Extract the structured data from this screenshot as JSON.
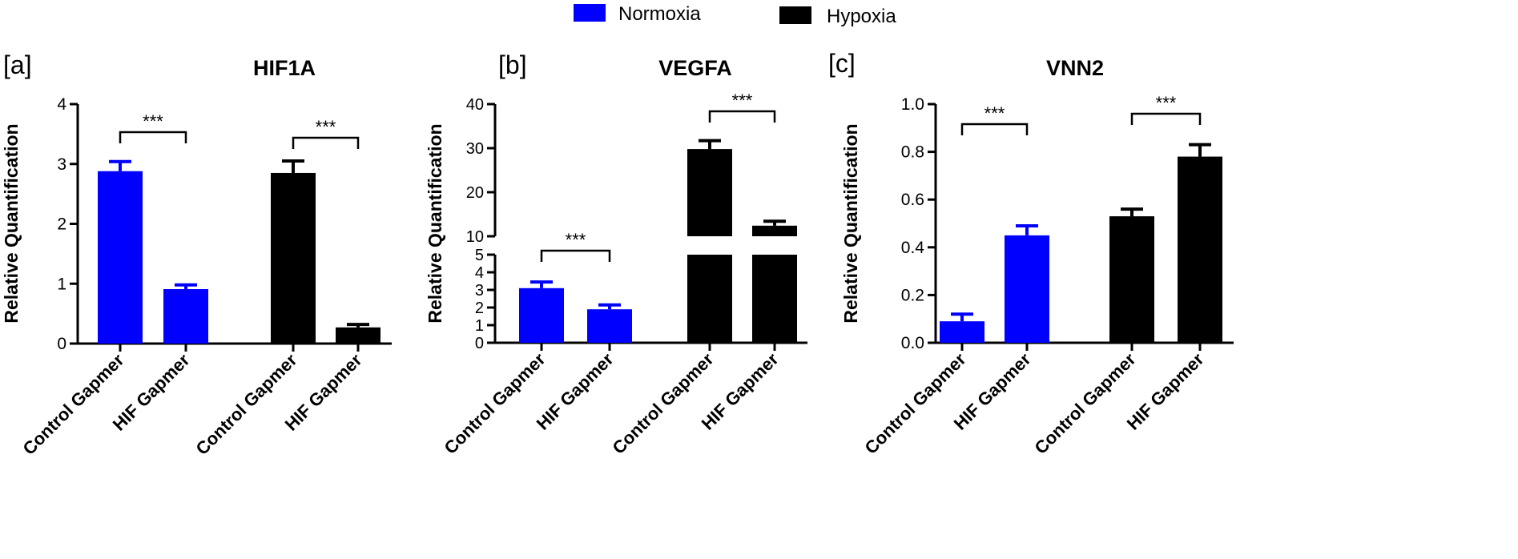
{
  "legend": {
    "items": [
      {
        "label": "Normoxia",
        "color": "#0000ff"
      },
      {
        "label": "Hypoxia",
        "color": "#000000"
      }
    ]
  },
  "chart_data": [
    {
      "panel_label": "[a]",
      "type": "bar",
      "title": "HIF1A",
      "ylabel": "Relative Quantification",
      "ylim": [
        0,
        4
      ],
      "yticks": [
        "0",
        "1",
        "2",
        "3",
        "4"
      ],
      "categories": [
        "Control Gapmer",
        "HIF Gapmer",
        "Control Gapmer",
        "HIF Gapmer"
      ],
      "values": [
        2.88,
        0.91,
        2.85,
        0.27
      ],
      "errors": [
        0.16,
        0.07,
        0.2,
        0.05
      ],
      "colors": [
        "#0000ff",
        "#0000ff",
        "#000000",
        "#000000"
      ],
      "significance": [
        {
          "pair": [
            0,
            1
          ],
          "label": "***"
        },
        {
          "pair": [
            2,
            3
          ],
          "label": "***"
        }
      ]
    },
    {
      "panel_label": "[b]",
      "type": "bar",
      "title": "VEGFA",
      "ylabel": "Relative Quantification",
      "ylim": [
        0,
        40
      ],
      "broken_axis": {
        "lower": [
          0,
          5
        ],
        "upper": [
          10,
          40
        ]
      },
      "yticks_lower": [
        "0",
        "1",
        "2",
        "3",
        "4",
        "5"
      ],
      "yticks_upper": [
        "10",
        "20",
        "30",
        "40"
      ],
      "categories": [
        "Control Gapmer",
        "HIF Gapmer",
        "Control Gapmer",
        "HIF Gapmer"
      ],
      "values": [
        3.1,
        1.9,
        29.8,
        12.4
      ],
      "errors": [
        0.35,
        0.25,
        1.9,
        1.0
      ],
      "colors": [
        "#0000ff",
        "#0000ff",
        "#000000",
        "#000000"
      ],
      "significance": [
        {
          "pair": [
            0,
            1
          ],
          "label": "***"
        },
        {
          "pair": [
            2,
            3
          ],
          "label": "***"
        }
      ]
    },
    {
      "panel_label": "[c]",
      "type": "bar",
      "title": "VNN2",
      "ylabel": "Relative Quantification",
      "ylim": [
        0,
        1.0
      ],
      "yticks": [
        "0.0",
        "0.2",
        "0.4",
        "0.6",
        "0.8",
        "1.0"
      ],
      "categories": [
        "Control Gapmer",
        "HIF Gapmer",
        "Control Gapmer",
        "HIF Gapmer"
      ],
      "values": [
        0.09,
        0.45,
        0.53,
        0.78
      ],
      "errors": [
        0.03,
        0.04,
        0.03,
        0.05
      ],
      "colors": [
        "#0000ff",
        "#0000ff",
        "#000000",
        "#000000"
      ],
      "significance": [
        {
          "pair": [
            0,
            1
          ],
          "label": "***"
        },
        {
          "pair": [
            2,
            3
          ],
          "label": "***"
        }
      ]
    }
  ]
}
